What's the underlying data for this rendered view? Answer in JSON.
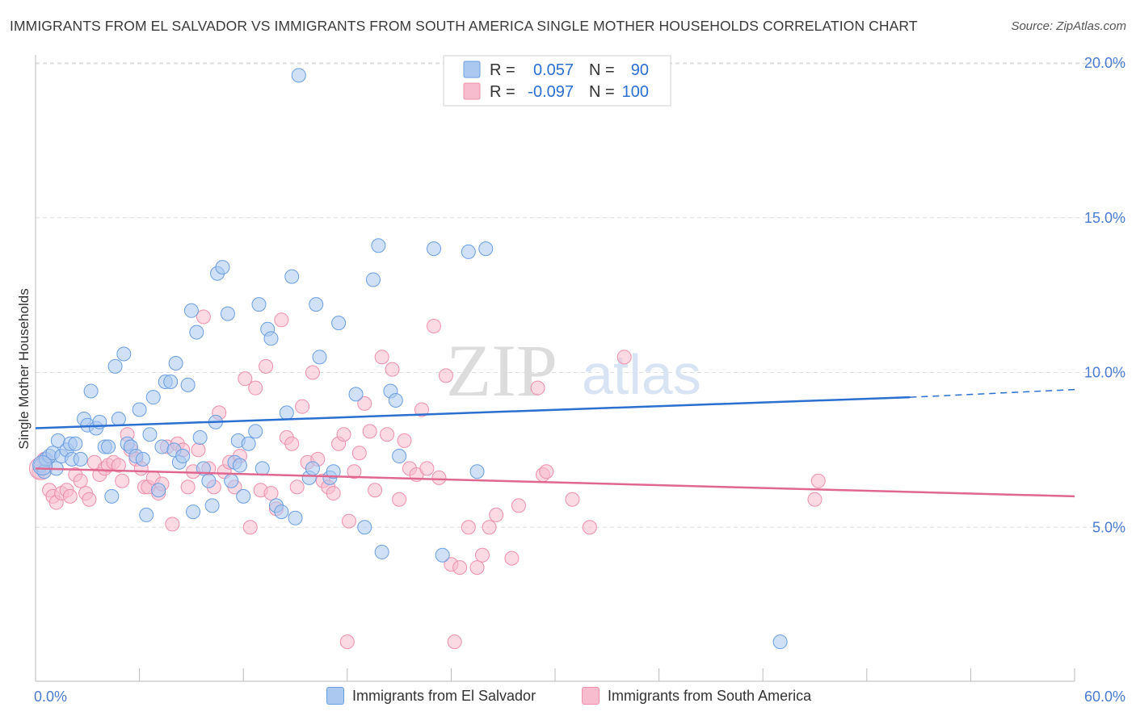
{
  "title": "IMMIGRANTS FROM EL SALVADOR VS IMMIGRANTS FROM SOUTH AMERICA SINGLE MOTHER HOUSEHOLDS CORRELATION CHART",
  "source": "Source: ZipAtlas.com",
  "watermark": {
    "zip": "ZIP",
    "atlas": "atlas"
  },
  "legend": {
    "rows": [
      {
        "r_label": "R =",
        "r_value": "0.057",
        "n_label": "N =",
        "n_value": "90"
      },
      {
        "r_label": "R =",
        "r_value": "-0.097",
        "n_label": "N =",
        "n_value": "100"
      }
    ]
  },
  "bottom_legend": {
    "series1": "Immigrants from El Salvador",
    "series2": "Immigrants from South America"
  },
  "colors": {
    "blue_fill": "#aac8f0",
    "blue_stroke": "#6a9ee0",
    "blue_line": "#2b6fd0",
    "pink_fill": "#f7bccd",
    "pink_stroke": "#ee8fac",
    "pink_line": "#e06890",
    "tick_text": "#4a7bd0",
    "grid": "#dddddd"
  },
  "chart_data": {
    "type": "scatter",
    "title": "IMMIGRANTS FROM EL SALVADOR VS IMMIGRANTS FROM SOUTH AMERICA SINGLE MOTHER HOUSEHOLDS CORRELATION CHART",
    "xlabel": "",
    "ylabel": "Single Mother Households",
    "xlim": [
      0,
      60
    ],
    "ylim": [
      0,
      21
    ],
    "x_tick_labels": [
      "0.0%",
      "60.0%"
    ],
    "y_ticks": [
      5,
      10,
      15,
      20
    ],
    "y_tick_labels": [
      "5.0%",
      "10.0%",
      "15.0%",
      "20.0%"
    ],
    "grid": "horizontal dashed",
    "legend_position": "top-center",
    "series": [
      {
        "name": "Immigrants from El Salvador",
        "color": "#aac8f0",
        "r": 0.057,
        "n": 90,
        "trend": {
          "x": [
            0,
            50.5
          ],
          "y": [
            8.2,
            9.2
          ],
          "dashed_x": [
            50.5,
            60
          ],
          "dashed_y": [
            9.2,
            9.45
          ]
        },
        "points": [
          [
            0.3,
            7.0
          ],
          [
            0.5,
            6.8
          ],
          [
            0.6,
            7.2
          ],
          [
            0.8,
            7.3
          ],
          [
            1.0,
            7.4
          ],
          [
            1.2,
            6.9
          ],
          [
            1.3,
            7.8
          ],
          [
            1.5,
            7.3
          ],
          [
            1.8,
            7.5
          ],
          [
            2.0,
            7.7
          ],
          [
            2.1,
            7.2
          ],
          [
            2.3,
            7.7
          ],
          [
            2.6,
            7.2
          ],
          [
            2.8,
            8.5
          ],
          [
            3.0,
            8.3
          ],
          [
            3.2,
            9.4
          ],
          [
            3.5,
            8.2
          ],
          [
            3.7,
            8.4
          ],
          [
            4.0,
            7.6
          ],
          [
            4.2,
            7.6
          ],
          [
            4.4,
            6.0
          ],
          [
            4.6,
            10.2
          ],
          [
            4.8,
            8.5
          ],
          [
            5.1,
            10.6
          ],
          [
            5.3,
            7.7
          ],
          [
            5.5,
            7.6
          ],
          [
            5.8,
            7.3
          ],
          [
            6.0,
            8.8
          ],
          [
            6.2,
            7.2
          ],
          [
            6.4,
            5.4
          ],
          [
            6.6,
            8.0
          ],
          [
            6.8,
            9.2
          ],
          [
            7.1,
            6.2
          ],
          [
            7.3,
            7.6
          ],
          [
            7.5,
            9.7
          ],
          [
            7.8,
            9.7
          ],
          [
            8.0,
            7.5
          ],
          [
            8.1,
            10.3
          ],
          [
            8.3,
            7.1
          ],
          [
            8.5,
            7.3
          ],
          [
            8.8,
            9.6
          ],
          [
            9.0,
            12.0
          ],
          [
            9.3,
            11.3
          ],
          [
            9.5,
            7.9
          ],
          [
            9.7,
            6.9
          ],
          [
            10.0,
            6.5
          ],
          [
            10.2,
            5.7
          ],
          [
            10.4,
            8.4
          ],
          [
            10.5,
            13.2
          ],
          [
            10.8,
            13.4
          ],
          [
            11.1,
            11.9
          ],
          [
            11.3,
            6.5
          ],
          [
            11.5,
            7.1
          ],
          [
            11.7,
            7.8
          ],
          [
            11.8,
            7.0
          ],
          [
            12.0,
            6.0
          ],
          [
            12.3,
            7.7
          ],
          [
            12.7,
            8.1
          ],
          [
            12.9,
            12.2
          ],
          [
            13.1,
            6.9
          ],
          [
            13.4,
            11.4
          ],
          [
            13.6,
            11.1
          ],
          [
            13.9,
            5.7
          ],
          [
            14.2,
            5.5
          ],
          [
            14.5,
            8.7
          ],
          [
            14.8,
            13.1
          ],
          [
            15.0,
            5.3
          ],
          [
            15.2,
            19.6
          ],
          [
            15.8,
            6.6
          ],
          [
            16.2,
            12.2
          ],
          [
            16.4,
            10.5
          ],
          [
            17.0,
            6.6
          ],
          [
            17.2,
            6.8
          ],
          [
            17.5,
            11.6
          ],
          [
            18.5,
            9.3
          ],
          [
            19.0,
            5.0
          ],
          [
            19.5,
            13.0
          ],
          [
            19.8,
            14.1
          ],
          [
            20.0,
            4.2
          ],
          [
            20.5,
            9.4
          ],
          [
            20.8,
            9.1
          ],
          [
            23.0,
            14.0
          ],
          [
            23.5,
            4.1
          ],
          [
            25.0,
            13.9
          ],
          [
            26.0,
            14.0
          ],
          [
            25.5,
            6.8
          ],
          [
            43.0,
            1.3
          ],
          [
            16.0,
            6.9
          ],
          [
            9.1,
            5.5
          ],
          [
            21.0,
            7.3
          ]
        ]
      },
      {
        "name": "Immigrants from South America",
        "color": "#f7bccd",
        "r": -0.097,
        "n": 100,
        "trend": {
          "x": [
            0,
            60
          ],
          "y": [
            6.9,
            6.0
          ]
        },
        "points": [
          [
            0.2,
            6.8
          ],
          [
            0.5,
            7.2
          ],
          [
            0.8,
            6.2
          ],
          [
            1.0,
            6.0
          ],
          [
            1.2,
            5.8
          ],
          [
            1.5,
            6.1
          ],
          [
            1.8,
            6.2
          ],
          [
            2.0,
            6.0
          ],
          [
            2.3,
            6.7
          ],
          [
            2.6,
            6.5
          ],
          [
            2.9,
            6.1
          ],
          [
            3.1,
            5.9
          ],
          [
            3.4,
            7.1
          ],
          [
            3.7,
            6.7
          ],
          [
            4.0,
            6.9
          ],
          [
            4.2,
            7.0
          ],
          [
            4.5,
            7.1
          ],
          [
            4.8,
            7.0
          ],
          [
            5.0,
            6.5
          ],
          [
            5.3,
            8.0
          ],
          [
            5.5,
            7.5
          ],
          [
            5.8,
            7.2
          ],
          [
            6.1,
            6.9
          ],
          [
            6.3,
            6.3
          ],
          [
            6.5,
            6.3
          ],
          [
            6.8,
            6.6
          ],
          [
            7.1,
            6.1
          ],
          [
            7.3,
            6.4
          ],
          [
            7.6,
            7.6
          ],
          [
            7.9,
            5.1
          ],
          [
            8.2,
            7.7
          ],
          [
            8.5,
            7.5
          ],
          [
            8.8,
            6.3
          ],
          [
            9.1,
            6.8
          ],
          [
            9.4,
            7.5
          ],
          [
            9.7,
            11.8
          ],
          [
            10.0,
            6.9
          ],
          [
            10.3,
            6.3
          ],
          [
            10.6,
            8.7
          ],
          [
            10.9,
            6.8
          ],
          [
            11.2,
            7.1
          ],
          [
            11.5,
            6.3
          ],
          [
            11.8,
            7.3
          ],
          [
            12.1,
            9.8
          ],
          [
            12.4,
            5.0
          ],
          [
            12.7,
            9.5
          ],
          [
            13.0,
            6.2
          ],
          [
            13.3,
            10.2
          ],
          [
            13.6,
            6.1
          ],
          [
            13.9,
            5.6
          ],
          [
            14.2,
            11.7
          ],
          [
            14.5,
            7.9
          ],
          [
            14.8,
            7.7
          ],
          [
            15.1,
            6.3
          ],
          [
            15.4,
            8.9
          ],
          [
            15.7,
            7.1
          ],
          [
            16.0,
            10.0
          ],
          [
            16.3,
            7.2
          ],
          [
            16.6,
            6.5
          ],
          [
            16.9,
            6.3
          ],
          [
            17.2,
            6.1
          ],
          [
            17.5,
            7.7
          ],
          [
            17.8,
            8.0
          ],
          [
            18.1,
            5.2
          ],
          [
            18.4,
            6.8
          ],
          [
            18.7,
            7.4
          ],
          [
            19.0,
            9.0
          ],
          [
            19.3,
            8.1
          ],
          [
            19.6,
            6.2
          ],
          [
            20.0,
            10.5
          ],
          [
            20.3,
            8.0
          ],
          [
            20.6,
            10.1
          ],
          [
            21.0,
            5.9
          ],
          [
            21.3,
            7.8
          ],
          [
            21.6,
            6.9
          ],
          [
            22.0,
            6.7
          ],
          [
            22.3,
            8.8
          ],
          [
            22.6,
            6.9
          ],
          [
            23.0,
            11.5
          ],
          [
            23.3,
            6.6
          ],
          [
            23.7,
            9.9
          ],
          [
            24.0,
            3.8
          ],
          [
            24.5,
            3.7
          ],
          [
            25.0,
            5.0
          ],
          [
            25.5,
            3.7
          ],
          [
            25.8,
            4.1
          ],
          [
            26.2,
            5.0
          ],
          [
            26.6,
            5.4
          ],
          [
            27.5,
            4.0
          ],
          [
            27.9,
            5.7
          ],
          [
            29.0,
            9.5
          ],
          [
            29.3,
            6.7
          ],
          [
            29.5,
            6.8
          ],
          [
            31.0,
            5.9
          ],
          [
            32.0,
            5.0
          ],
          [
            34.0,
            10.5
          ],
          [
            45.0,
            5.9
          ],
          [
            18.0,
            1.3
          ],
          [
            24.2,
            1.3
          ],
          [
            45.2,
            6.5
          ]
        ]
      }
    ]
  }
}
